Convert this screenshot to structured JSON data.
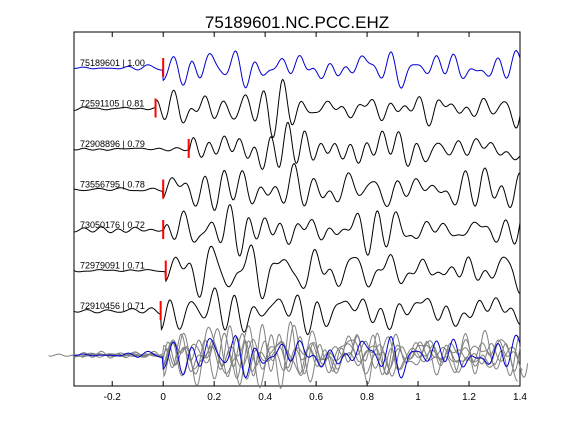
{
  "chart_data": {
    "type": "line",
    "title": "75189601.NC.PCC.EHZ",
    "xlabel": "",
    "ylabel": "",
    "xlim": [
      -0.35,
      1.4
    ],
    "x_ticks": [
      "-0.2",
      "0",
      "0.2",
      "0.4",
      "0.6",
      "0.8",
      "1",
      "1.2",
      "1.4"
    ],
    "x_tick_values": [
      -0.2,
      0,
      0.2,
      0.4,
      0.6,
      0.8,
      1.0,
      1.2,
      1.4
    ],
    "grid": false,
    "colors": {
      "master": "#0000cc",
      "trace": "#000000",
      "stack": "#808080",
      "pick": "#ff0000"
    },
    "series": [
      {
        "label": "75189601 | 1.00",
        "id": "75189601",
        "cc": 1.0,
        "pick_time": 0.0,
        "master": true
      },
      {
        "label": "72591105 | 0.81",
        "id": "72591105",
        "cc": 0.81,
        "pick_time": -0.03,
        "master": false
      },
      {
        "label": "72908896 | 0.79",
        "id": "72908896",
        "cc": 0.79,
        "pick_time": 0.1,
        "master": false
      },
      {
        "label": "73556795 | 0.78",
        "id": "73556795",
        "cc": 0.78,
        "pick_time": 0.0,
        "master": false
      },
      {
        "label": "73050176 | 0.72",
        "id": "73050176",
        "cc": 0.72,
        "pick_time": 0.0,
        "master": false
      },
      {
        "label": "72979091 | 0.71",
        "id": "72979091",
        "cc": 0.71,
        "pick_time": 0.01,
        "master": false
      },
      {
        "label": "72910456 | 0.71",
        "id": "72910456",
        "cc": 0.71,
        "pick_time": -0.01,
        "master": false
      }
    ]
  }
}
